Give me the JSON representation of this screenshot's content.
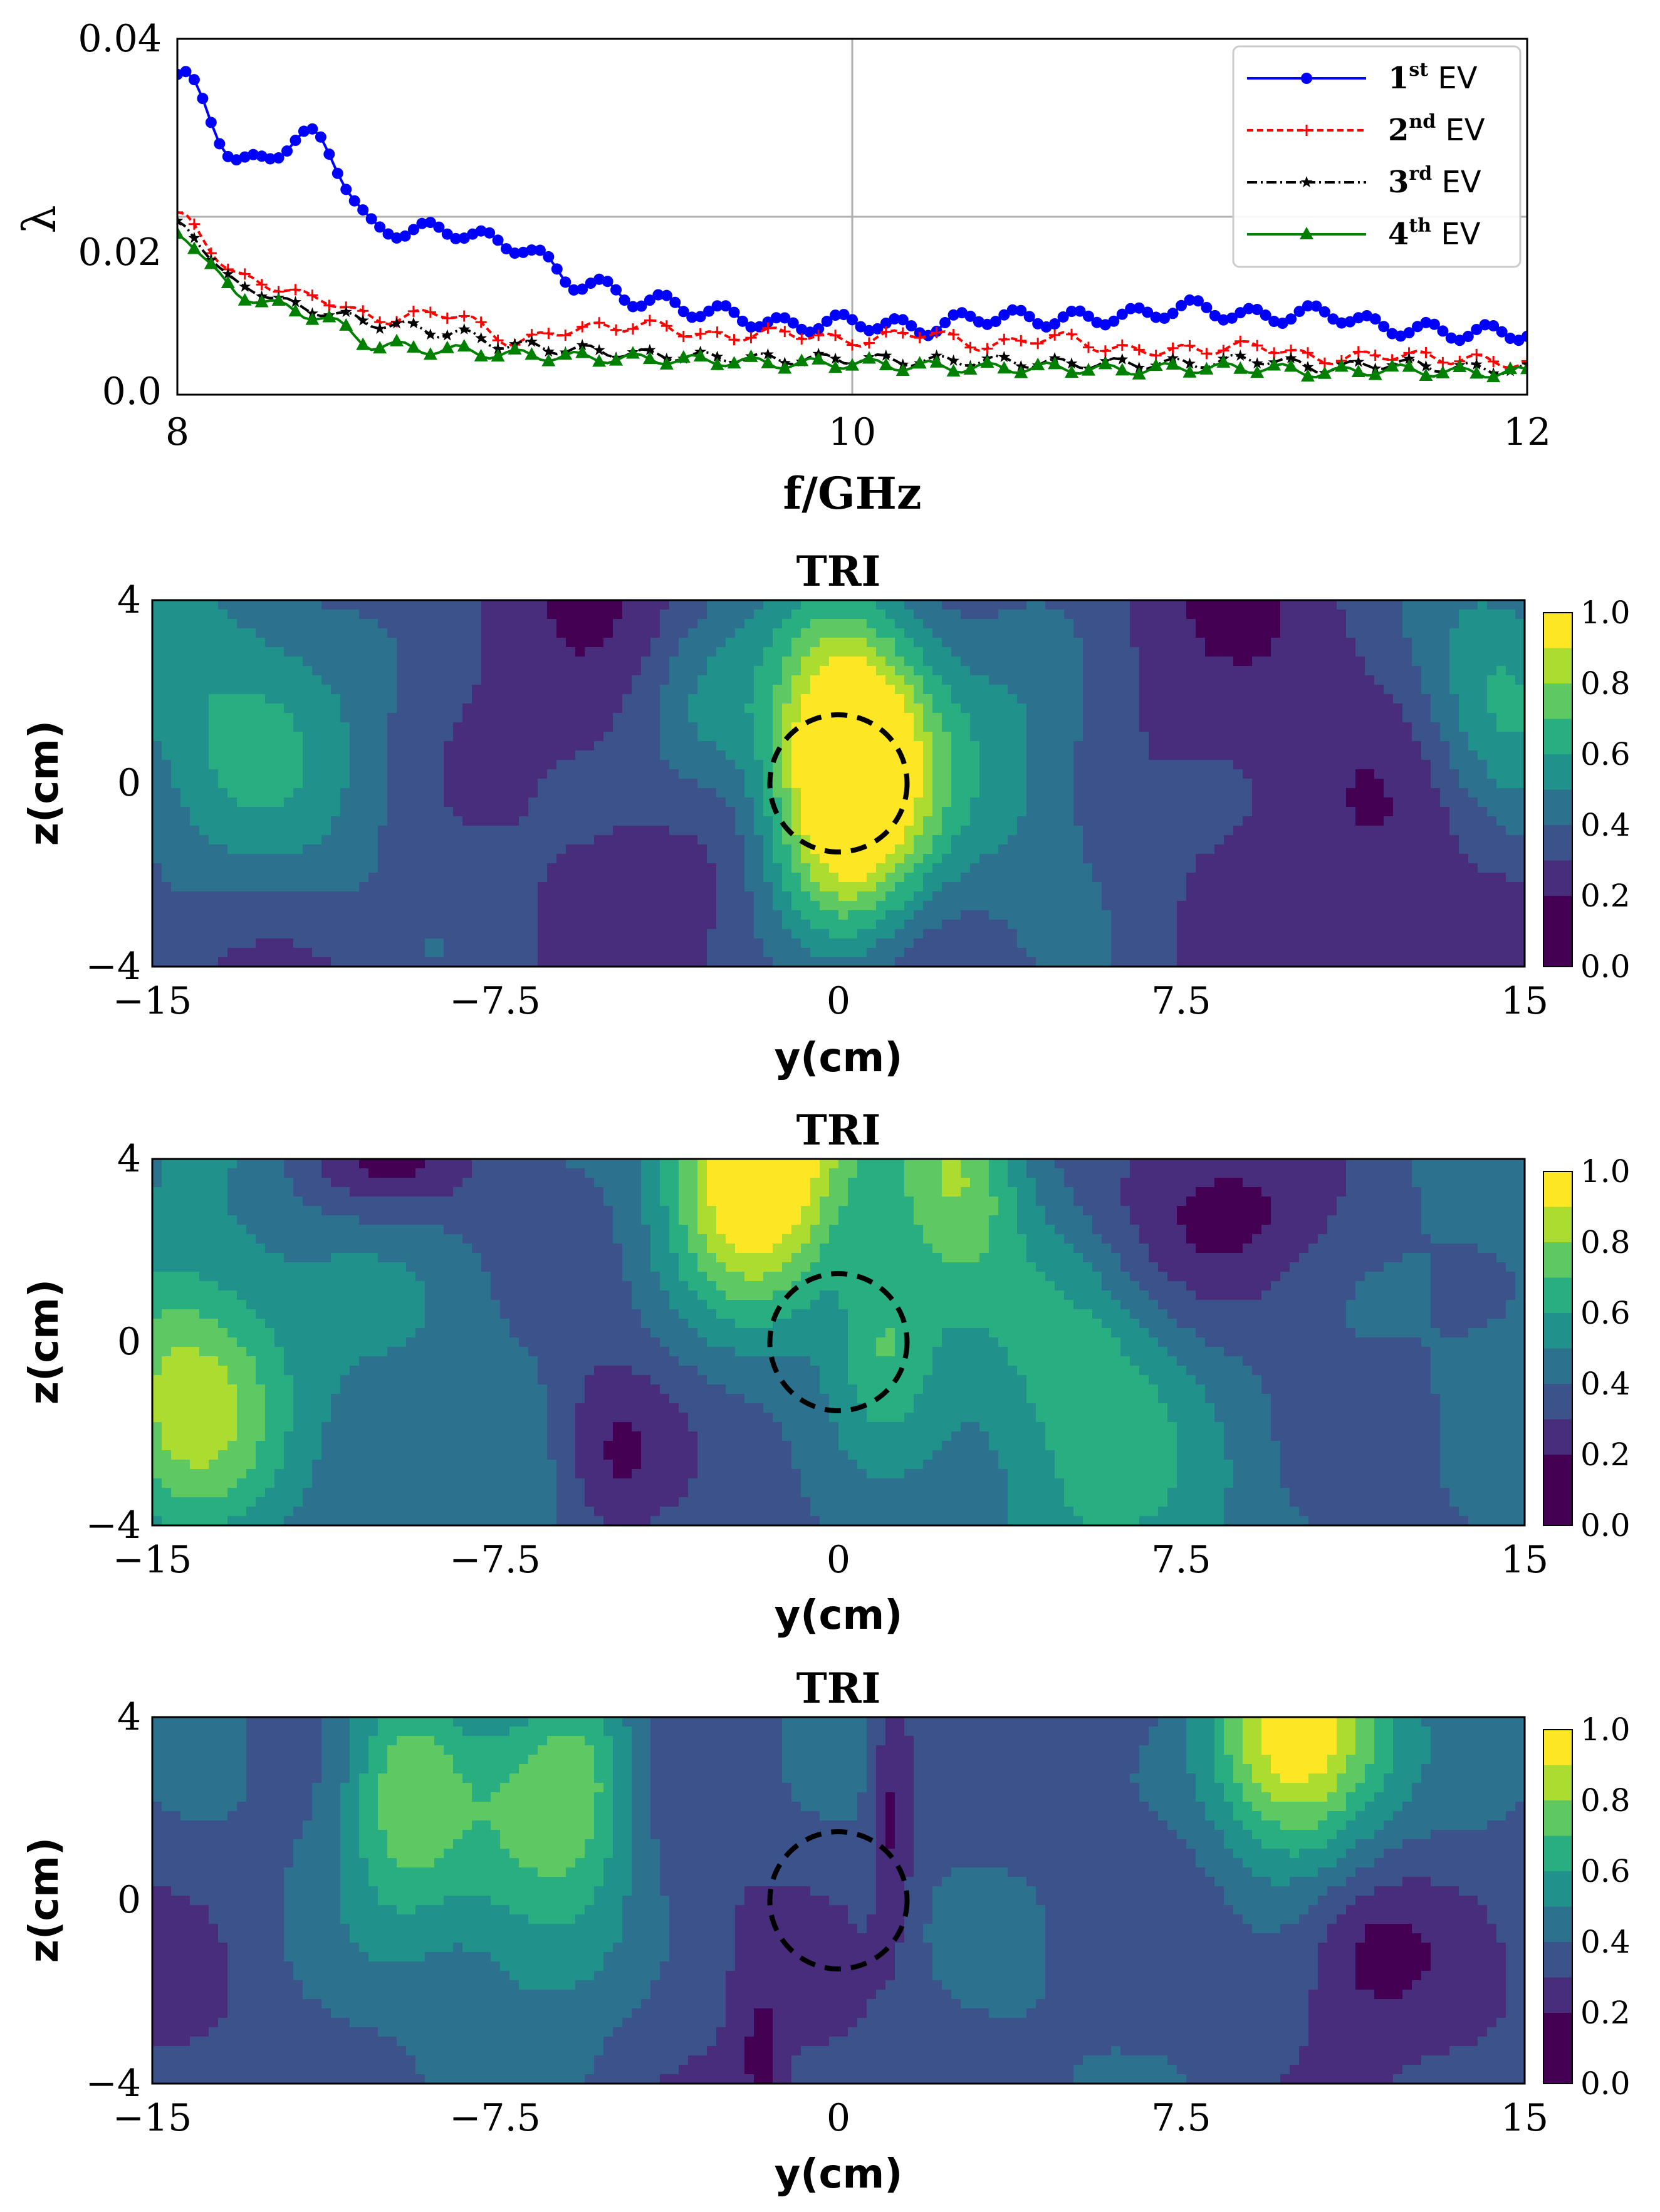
{
  "chart_data": [
    {
      "type": "line",
      "xlabel": "f/GHz",
      "ylabel": "λ",
      "xlim": [
        8,
        12
      ],
      "ylim": [
        0,
        0.04
      ],
      "xticks": [
        "8",
        "10",
        "12"
      ],
      "yticks": [
        "0.0",
        "0.02",
        "0.04"
      ],
      "grid": true,
      "legend_position": "top-right",
      "x": [
        8.0,
        8.2,
        8.4,
        8.6,
        8.8,
        9.0,
        9.2,
        9.4,
        9.6,
        9.8,
        10.0,
        10.2,
        10.4,
        10.6,
        10.8,
        11.0,
        11.2,
        11.4,
        11.6,
        11.8,
        12.0
      ],
      "series": [
        {
          "name_base": "1",
          "name_sup": "st",
          "name_suffix": " EV",
          "color": "#0000ff",
          "marker": "circle",
          "dash": "",
          "values": [
            0.036,
            0.026,
            0.029,
            0.0185,
            0.0185,
            0.0168,
            0.0125,
            0.0105,
            0.0092,
            0.0078,
            0.0082,
            0.0075,
            0.0088,
            0.0085,
            0.0088,
            0.0098,
            0.0088,
            0.0092,
            0.0075,
            0.007,
            0.007
          ]
        },
        {
          "name_base": "2",
          "name_sup": "nd",
          "name_suffix": " EV",
          "color": "#ff0000",
          "marker": "plus",
          "dash": "10,6",
          "values": [
            0.02,
            0.013,
            0.011,
            0.0085,
            0.0092,
            0.006,
            0.0075,
            0.0078,
            0.0065,
            0.007,
            0.006,
            0.007,
            0.0055,
            0.0065,
            0.005,
            0.005,
            0.0055,
            0.004,
            0.0045,
            0.004,
            0.0035
          ]
        },
        {
          "name_base": "3",
          "name_sup": "rd",
          "name_suffix": " EV",
          "color": "#000000",
          "marker": "star",
          "dash": "16,6,3,6",
          "values": [
            0.019,
            0.012,
            0.0095,
            0.008,
            0.007,
            0.0055,
            0.005,
            0.0045,
            0.0042,
            0.004,
            0.004,
            0.0038,
            0.0038,
            0.0035,
            0.0035,
            0.0035,
            0.004,
            0.003,
            0.0035,
            0.003,
            0.0028
          ]
        },
        {
          "name_base": "4",
          "name_sup": "th",
          "name_suffix": " EV",
          "color": "#008000",
          "marker": "triangle",
          "dash": "",
          "values": [
            0.018,
            0.011,
            0.009,
            0.0055,
            0.005,
            0.0045,
            0.0042,
            0.004,
            0.0038,
            0.0035,
            0.0035,
            0.0032,
            0.003,
            0.003,
            0.0028,
            0.003,
            0.003,
            0.0025,
            0.0028,
            0.0025,
            0.0025
          ]
        }
      ]
    },
    {
      "type": "heatmap",
      "title": "TRI",
      "xlabel": "y(cm)",
      "ylabel": "z(cm)",
      "xlim": [
        -15,
        15
      ],
      "ylim": [
        -4,
        4
      ],
      "xticks": [
        "−15",
        "−7.5",
        "0",
        "7.5",
        "15"
      ],
      "yticks": [
        "−4",
        "0",
        "4"
      ],
      "colorbar_ticks": [
        "0.0",
        "0.2",
        "0.4",
        "0.6",
        "0.8",
        "1.0"
      ],
      "target_circle": {
        "center_y": 0,
        "center_z": 0,
        "radius_cm": 1.5
      },
      "hotspots": [
        {
          "y": 0.2,
          "z": 0.2,
          "sy": 1.3,
          "sz": 2.5,
          "amp": 0.98
        },
        {
          "y": -13.5,
          "z": 1.0,
          "sy": 2.5,
          "sz": 3.0,
          "amp": 0.3
        },
        {
          "y": 14.5,
          "z": 2.0,
          "sy": 1.2,
          "sz": 2.0,
          "amp": 0.3
        },
        {
          "y": -3.0,
          "z": 1.5,
          "sy": 1.0,
          "sz": 1.5,
          "amp": 0.25
        },
        {
          "y": 4.0,
          "z": 0.5,
          "sy": 1.5,
          "sz": 2.5,
          "amp": 0.2
        }
      ],
      "baseline": 0.18
    },
    {
      "type": "heatmap",
      "title": "TRI",
      "xlabel": "y(cm)",
      "ylabel": "z(cm)",
      "xlim": [
        -15,
        15
      ],
      "ylim": [
        -4,
        4
      ],
      "xticks": [
        "−15",
        "−7.5",
        "0",
        "7.5",
        "15"
      ],
      "yticks": [
        "−4",
        "0",
        "4"
      ],
      "colorbar_ticks": [
        "0.0",
        "0.2",
        "0.4",
        "0.6",
        "0.8",
        "1.0"
      ],
      "target_circle": {
        "center_y": 0,
        "center_z": 0,
        "radius_cm": 1.5
      },
      "hotspots": [
        {
          "y": -1.8,
          "z": 4.0,
          "sy": 1.3,
          "sz": 2.2,
          "amp": 0.7
        },
        {
          "y": 2.6,
          "z": 3.8,
          "sy": 1.0,
          "sz": 1.8,
          "amp": 0.35
        },
        {
          "y": -14.3,
          "z": -1.3,
          "sy": 1.5,
          "sz": 2.2,
          "amp": 0.45
        },
        {
          "y": 1.0,
          "z": 0.0,
          "sy": 0.8,
          "sz": 1.5,
          "amp": 0.25
        },
        {
          "y": 5.5,
          "z": -1.5,
          "sy": 1.5,
          "sz": 2.5,
          "amp": 0.22
        },
        {
          "y": -5.0,
          "z": -2.5,
          "sy": 1.0,
          "sz": 1.5,
          "amp": -0.25
        },
        {
          "y": -10.0,
          "z": 4.0,
          "sy": 1.5,
          "sz": 1.0,
          "amp": -0.25
        },
        {
          "y": 8.5,
          "z": 3.0,
          "sy": 2.5,
          "sz": 1.5,
          "amp": -0.2
        }
      ],
      "baseline": 0.33
    },
    {
      "type": "heatmap",
      "title": "TRI",
      "xlabel": "y(cm)",
      "ylabel": "z(cm)",
      "xlim": [
        -15,
        15
      ],
      "ylim": [
        -4,
        4
      ],
      "xticks": [
        "−15",
        "−7.5",
        "0",
        "7.5",
        "15"
      ],
      "yticks": [
        "−4",
        "0",
        "4"
      ],
      "colorbar_ticks": [
        "0.0",
        "0.2",
        "0.4",
        "0.6",
        "0.8",
        "1.0"
      ],
      "target_circle": {
        "center_y": 0,
        "center_z": 0,
        "radius_cm": 1.5
      },
      "hotspots": [
        {
          "y": 10.0,
          "z": 3.6,
          "sy": 1.4,
          "sz": 2.0,
          "amp": 0.75
        },
        {
          "y": -9.5,
          "z": 2.5,
          "sy": 1.0,
          "sz": 2.0,
          "amp": 0.4
        },
        {
          "y": -6.5,
          "z": 1.0,
          "sy": 1.5,
          "sz": 2.5,
          "amp": 0.35
        },
        {
          "y": -5.5,
          "z": 3.0,
          "sy": 1.0,
          "sz": 1.5,
          "amp": 0.25
        },
        {
          "y": 11.5,
          "z": -1.0,
          "sy": 1.0,
          "sz": 1.2,
          "amp": -0.15
        },
        {
          "y": 1.2,
          "z": 2.0,
          "sy": 0.3,
          "sz": 2.0,
          "amp": -0.2
        },
        {
          "y": -1.7,
          "z": -3.5,
          "sy": 0.3,
          "sz": 1.0,
          "amp": -0.15
        }
      ],
      "baseline": 0.24
    }
  ]
}
